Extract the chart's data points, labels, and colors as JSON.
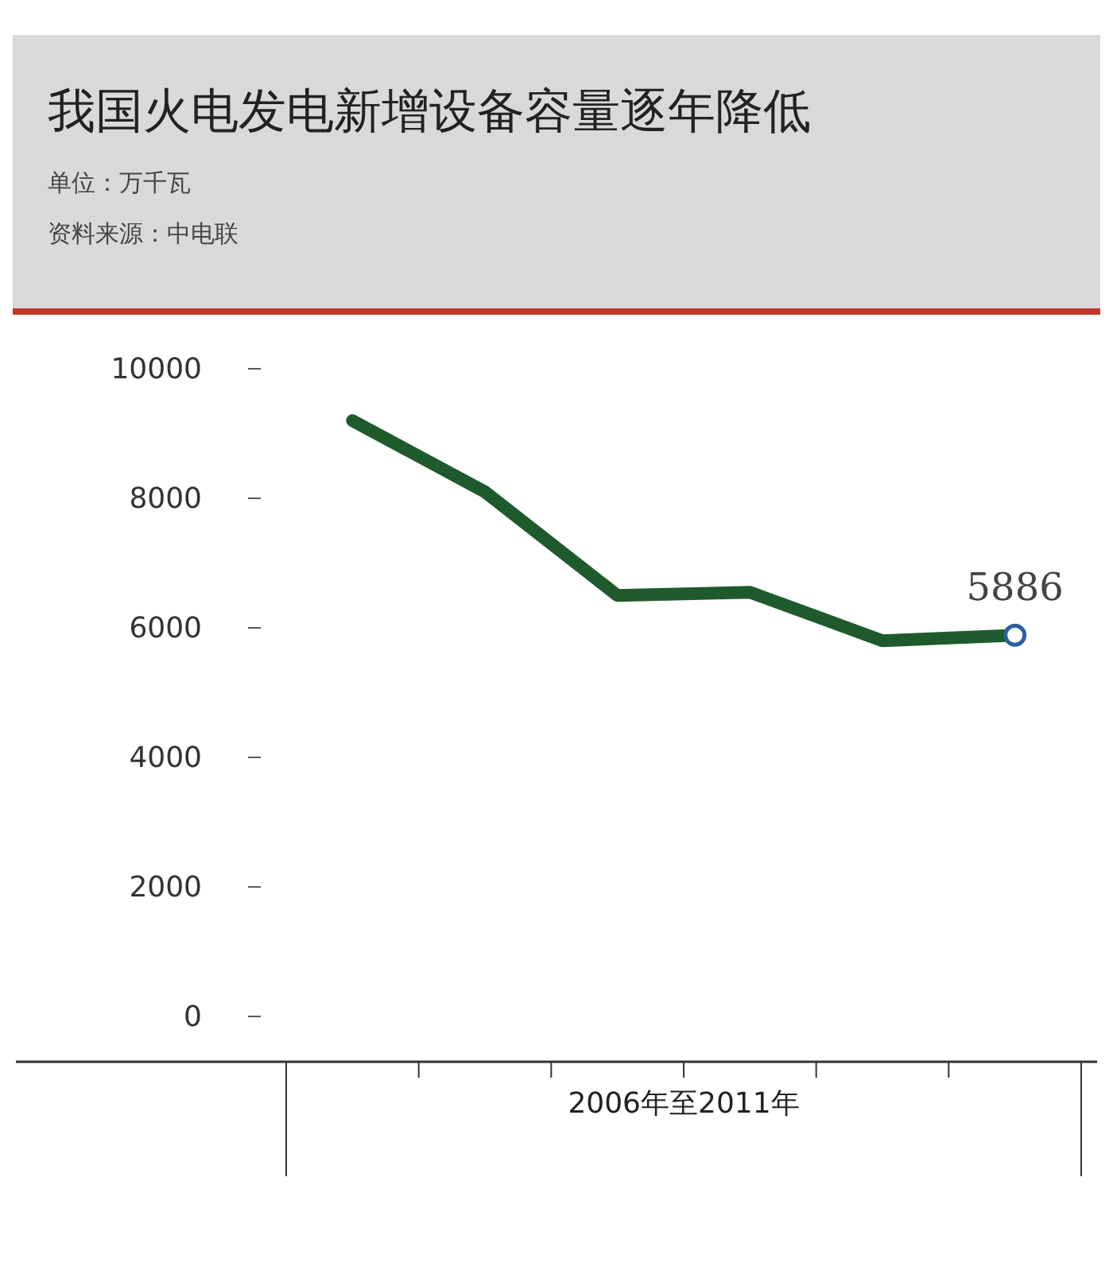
{
  "chart_data": {
    "type": "line",
    "title": "我国火电发电新增设备容量逐年降低",
    "subtitle": "单位：万千瓦",
    "annotations": [
      "资料来源：中电联"
    ],
    "xlabel": "2006年至2011年",
    "categories": [
      null,
      null,
      null,
      null,
      null,
      null
    ],
    "series": [
      {
        "color": "#1f5a2c",
        "values": [
          9200,
          8100,
          6500,
          6550,
          5800,
          5886
        ],
        "value_labels": [
          null,
          null,
          null,
          null,
          null,
          "5886"
        ]
      }
    ],
    "ylim": [
      -700,
      10000
    ],
    "yticks": [
      0,
      2000,
      4000,
      6000,
      8000,
      10000
    ],
    "grid": false
  }
}
